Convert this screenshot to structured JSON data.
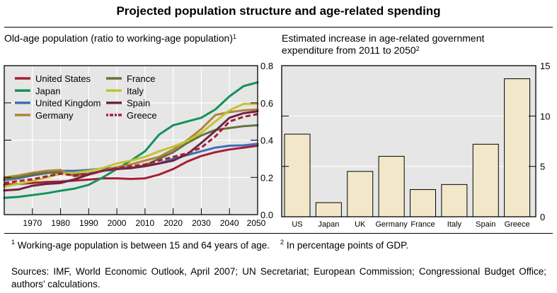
{
  "title": "Projected population structure and age-related spending",
  "footnotes": {
    "n1_marker": "1",
    "n1_text": "Working-age population is between 15 and 64 years of age.",
    "n2_marker": "2",
    "n2_text": "In percentage points of GDP."
  },
  "sources": "Sources: IMF, World Economic Outlook, April 2007; UN Secretariat; European Commission; Congressional Budget Office; authors’ calculations.",
  "chart_data": [
    {
      "type": "line",
      "title": "Old-age population (ratio to working-age population)",
      "title_footnote": "1",
      "xlabel": "",
      "ylabel": "",
      "xlim": [
        1960,
        2050
      ],
      "ylim": [
        0.0,
        0.8
      ],
      "xticks": [
        1970,
        1980,
        1990,
        2000,
        2010,
        2020,
        2030,
        2040,
        2050
      ],
      "xtick_labels": [
        "1970",
        "1980",
        "1990",
        "2000",
        "2010",
        "2020",
        "2030",
        "2040",
        "2050"
      ],
      "yticks": [
        0.0,
        0.2,
        0.4,
        0.6,
        0.8
      ],
      "ytick_labels": [
        "0.0",
        "0.2",
        "0.4",
        "0.6",
        "0.8"
      ],
      "y_axis_side": "right",
      "grid": true,
      "legend_position": "top-left",
      "x": [
        1960,
        1965,
        1970,
        1975,
        1980,
        1985,
        1990,
        1995,
        2000,
        2005,
        2010,
        2015,
        2020,
        2025,
        2030,
        2035,
        2040,
        2045,
        2050
      ],
      "series": [
        {
          "name": "United States",
          "color": "#a51e36",
          "dash": false,
          "values": [
            0.16,
            0.165,
            0.17,
            0.175,
            0.178,
            0.183,
            0.188,
            0.195,
            0.195,
            0.192,
            0.195,
            0.215,
            0.245,
            0.285,
            0.315,
            0.335,
            0.35,
            0.36,
            0.37
          ]
        },
        {
          "name": "Japan",
          "color": "#13925a",
          "dash": false,
          "values": [
            0.09,
            0.095,
            0.105,
            0.115,
            0.128,
            0.14,
            0.16,
            0.2,
            0.245,
            0.29,
            0.34,
            0.43,
            0.48,
            0.5,
            0.52,
            0.565,
            0.635,
            0.69,
            0.71
          ]
        },
        {
          "name": "United Kingdom",
          "color": "#3e6fb8",
          "dash": false,
          "values": [
            0.185,
            0.195,
            0.21,
            0.222,
            0.235,
            0.235,
            0.24,
            0.248,
            0.25,
            0.252,
            0.26,
            0.275,
            0.3,
            0.32,
            0.34,
            0.36,
            0.37,
            0.372,
            0.38
          ]
        },
        {
          "name": "Germany",
          "color": "#b0843c",
          "dash": false,
          "values": [
            0.2,
            0.21,
            0.225,
            0.235,
            0.24,
            0.205,
            0.22,
            0.235,
            0.255,
            0.27,
            0.29,
            0.31,
            0.35,
            0.4,
            0.46,
            0.535,
            0.55,
            0.56,
            0.565
          ]
        },
        {
          "name": "France",
          "color": "#66713c",
          "dash": false,
          "values": [
            0.19,
            0.2,
            0.215,
            0.225,
            0.225,
            0.215,
            0.22,
            0.235,
            0.245,
            0.25,
            0.265,
            0.3,
            0.335,
            0.385,
            0.425,
            0.455,
            0.465,
            0.475,
            0.48
          ]
        },
        {
          "name": "Italy",
          "color": "#c2c232",
          "dash": false,
          "values": [
            0.15,
            0.165,
            0.18,
            0.2,
            0.22,
            0.225,
            0.235,
            0.25,
            0.275,
            0.29,
            0.31,
            0.34,
            0.365,
            0.395,
            0.44,
            0.5,
            0.56,
            0.595,
            0.595
          ]
        },
        {
          "name": "Spain",
          "color": "#6e2443",
          "dash": false,
          "values": [
            0.13,
            0.135,
            0.155,
            0.165,
            0.17,
            0.19,
            0.215,
            0.235,
            0.245,
            0.25,
            0.26,
            0.275,
            0.29,
            0.325,
            0.385,
            0.45,
            0.52,
            0.545,
            0.555
          ]
        },
        {
          "name": "Greece",
          "color": "#a51e36",
          "dash": true,
          "values": [
            0.17,
            0.18,
            0.19,
            0.205,
            0.22,
            0.21,
            0.22,
            0.235,
            0.25,
            0.26,
            0.27,
            0.29,
            0.31,
            0.33,
            0.36,
            0.42,
            0.5,
            0.525,
            0.54
          ]
        }
      ]
    },
    {
      "type": "bar",
      "title": "Estimated increase in age-related government expenditure from 2011 to 2050",
      "title_footnote": "2",
      "xlabel": "",
      "ylabel": "",
      "categories": [
        "US",
        "Japan",
        "UK",
        "Germany",
        "France",
        "Italy",
        "Spain",
        "Greece"
      ],
      "values": [
        8.2,
        1.4,
        4.5,
        6.0,
        2.7,
        3.2,
        7.2,
        13.7
      ],
      "ylim": [
        0,
        15
      ],
      "yticks": [
        0,
        5,
        10,
        15
      ],
      "ytick_labels": [
        "0",
        "5",
        "10",
        "15"
      ],
      "y_axis_side": "right",
      "grid": true,
      "bar_color": "#f2e8c9",
      "bar_edge_color": "#000000"
    }
  ],
  "colors": {
    "plot_background": "#e6e6e6",
    "gridline": "#ffffff",
    "axis": "#000000"
  }
}
